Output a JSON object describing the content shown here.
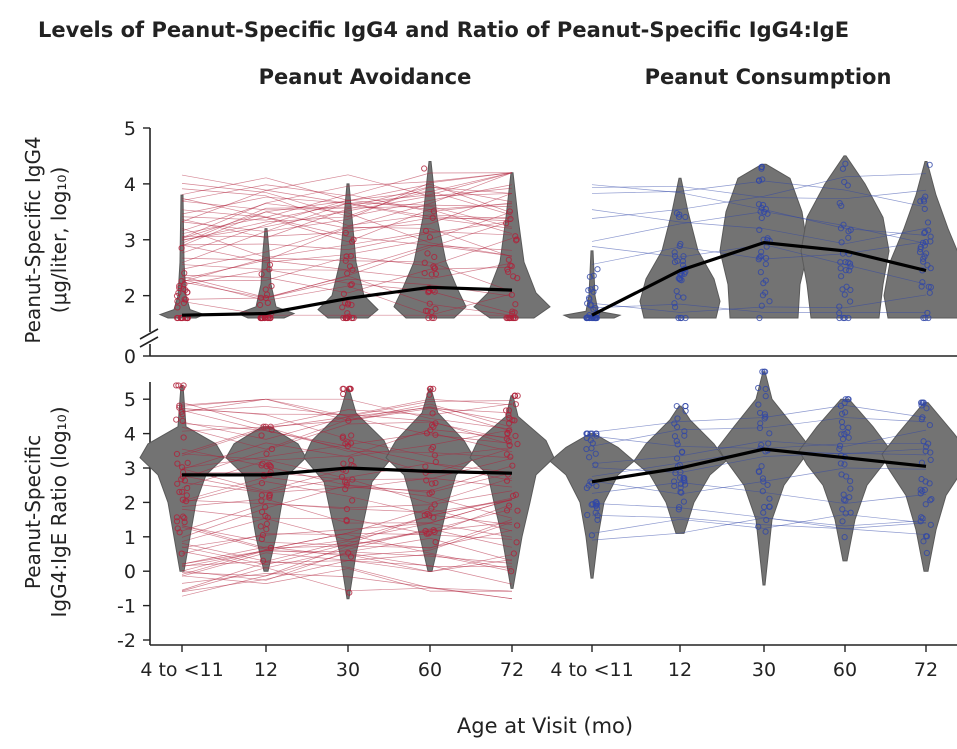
{
  "title": "Levels of Peanut-Specific IgG4 and Ratio of Peanut-Specific IgG4:IgE",
  "panels": {
    "left_title": "Peanut Avoidance",
    "right_title": "Peanut Consumption"
  },
  "axes": {
    "top_ylabel_line1": "Peanut-Specific IgG4",
    "top_ylabel_line2": "(μg/liter, log₁₀)",
    "bottom_ylabel_line1": "Peanut-Specific",
    "bottom_ylabel_line2": "IgG4:IgE Ratio (log₁₀)",
    "xlabel": "Age at Visit (mo)"
  },
  "colors": {
    "violin": "#737373",
    "avoid_points": "#b0203a",
    "consume_points": "#2f46a8",
    "median_line": "#000000"
  },
  "chart_data": [
    {
      "type": "violin",
      "row": "top",
      "group": "Peanut Avoidance",
      "categories": [
        "4 to <11",
        "12",
        "30",
        "60",
        "72"
      ],
      "medians": [
        1.65,
        1.68,
        1.95,
        2.15,
        2.1
      ],
      "ylabel": "Peanut-Specific IgG4 (μg/liter, log10)",
      "yticks": [
        0,
        2,
        3,
        4,
        5
      ],
      "ylim": [
        1.6,
        5
      ],
      "axis_break": true
    },
    {
      "type": "violin",
      "row": "top",
      "group": "Peanut Consumption",
      "categories": [
        "4 to <11",
        "12",
        "30",
        "60",
        "72"
      ],
      "medians": [
        1.65,
        2.45,
        2.95,
        2.8,
        2.45
      ],
      "ylim": [
        1.6,
        5
      ]
    },
    {
      "type": "violin",
      "row": "bottom",
      "group": "Peanut Avoidance",
      "categories": [
        "4 to <11",
        "12",
        "30",
        "60",
        "72"
      ],
      "medians": [
        2.8,
        2.8,
        3.0,
        2.9,
        2.85
      ],
      "ylabel": "Peanut-Specific IgG4:IgE Ratio (log10)",
      "yticks": [
        -2,
        -1,
        0,
        1,
        2,
        3,
        4,
        5
      ],
      "ylim": [
        -2,
        5.5
      ],
      "xlabel": "Age at Visit (mo)"
    },
    {
      "type": "violin",
      "row": "bottom",
      "group": "Peanut Consumption",
      "categories": [
        "4 to <11",
        "12",
        "30",
        "60",
        "72"
      ],
      "medians": [
        2.6,
        3.0,
        3.55,
        3.3,
        3.05
      ],
      "ylim": [
        -2,
        5.5
      ]
    }
  ]
}
